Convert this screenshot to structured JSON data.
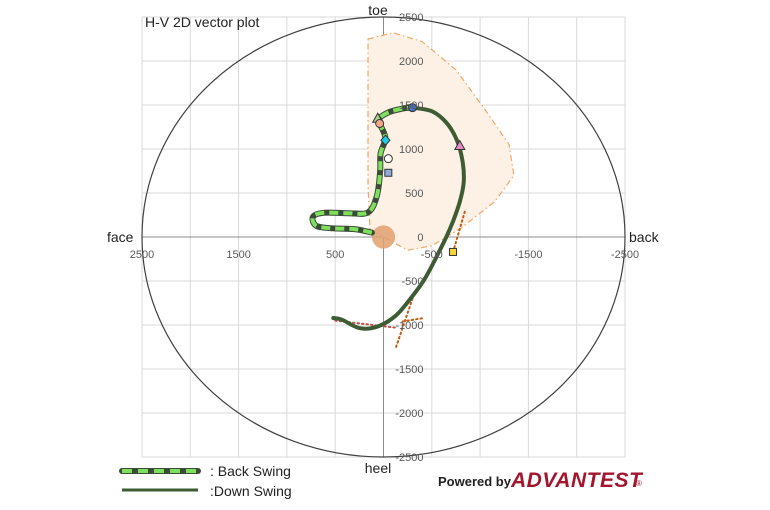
{
  "chart_data": {
    "type": "scatter",
    "title": "H-V 2D vector plot",
    "xlim": [
      2500,
      -2500
    ],
    "ylim": [
      -2500,
      2500
    ],
    "x_ticks": [
      2500,
      1500,
      500,
      -500,
      -1500,
      -2500
    ],
    "x_tick_labels": [
      "2500",
      "1500",
      "500",
      "-500",
      "-1500",
      "-2500"
    ],
    "y_ticks": [
      2500,
      2000,
      1500,
      1000,
      500,
      0,
      -500,
      -1000,
      -1500,
      -2000,
      -2500
    ],
    "y_tick_labels": [
      "2500",
      "2000",
      "1500",
      "1000",
      "500",
      "0",
      "-500",
      "-1000",
      "-1500",
      "-2000",
      "-2500"
    ],
    "grid": true,
    "direction_labels": {
      "top": "toe",
      "bottom": "heel",
      "left": "face",
      "right": "back"
    },
    "outer_ellipse": {
      "rx": 2500,
      "ry": 2500
    },
    "shaded_region": {
      "color": "#fdf1e6",
      "edge_color": "#f0a868",
      "points": [
        [
          160,
          2250
        ],
        [
          -100,
          2320
        ],
        [
          -400,
          2220
        ],
        [
          -750,
          1900
        ],
        [
          -1050,
          1450
        ],
        [
          -1300,
          1050
        ],
        [
          -1350,
          700
        ],
        [
          -1150,
          400
        ],
        [
          -800,
          100
        ],
        [
          -500,
          -100
        ],
        [
          -250,
          -150
        ],
        [
          0,
          0
        ],
        [
          140,
          80
        ],
        [
          160,
          600
        ],
        [
          160,
          1200
        ],
        [
          160,
          1800
        ],
        [
          160,
          2250
        ]
      ]
    },
    "origin_circle": {
      "x": 0,
      "y": 0,
      "r": 120,
      "color": "#e0a070"
    },
    "series": [
      {
        "name": "Back Swing",
        "color": "#7ee05c",
        "dash_color": "#3c4a3a",
        "points": [
          [
            120,
            50
          ],
          [
            300,
            90
          ],
          [
            550,
            100
          ],
          [
            700,
            130
          ],
          [
            730,
            230
          ],
          [
            620,
            275
          ],
          [
            360,
            270
          ],
          [
            160,
            280
          ],
          [
            70,
            460
          ],
          [
            35,
            740
          ],
          [
            30,
            950
          ],
          [
            -20,
            1120
          ],
          [
            30,
            1270
          ],
          [
            40,
            1350
          ],
          [
            -60,
            1420
          ],
          [
            -200,
            1460
          ],
          [
            -300,
            1470
          ]
        ]
      },
      {
        "name": "Down Swing",
        "color": "#3d5c34",
        "points": [
          [
            -300,
            1470
          ],
          [
            -500,
            1430
          ],
          [
            -650,
            1300
          ],
          [
            -760,
            1100
          ],
          [
            -820,
            850
          ],
          [
            -830,
            620
          ],
          [
            -790,
            400
          ],
          [
            -720,
            180
          ],
          [
            -650,
            0
          ],
          [
            -560,
            -200
          ],
          [
            -430,
            -470
          ],
          [
            -280,
            -700
          ],
          [
            -120,
            -900
          ],
          [
            70,
            -1020
          ],
          [
            250,
            -1035
          ],
          [
            430,
            -940
          ],
          [
            520,
            -920
          ]
        ]
      }
    ],
    "markers": [
      {
        "shape": "circle",
        "x": -300,
        "y": 1470,
        "color": "#4472c4"
      },
      {
        "shape": "triangle",
        "x": 60,
        "y": 1350,
        "color": "#a9d18e"
      },
      {
        "shape": "circle",
        "x": 40,
        "y": 1290,
        "color": "#f4a58a"
      },
      {
        "shape": "triangle",
        "x": -790,
        "y": 1040,
        "color": "#e38bc0"
      },
      {
        "shape": "diamond",
        "x": -20,
        "y": 1100,
        "color": "#1ecbe1"
      },
      {
        "shape": "circle",
        "x": -50,
        "y": 890,
        "color": "#ffffff"
      },
      {
        "shape": "square",
        "x": -50,
        "y": 730,
        "color": "#8faadc"
      },
      {
        "shape": "square",
        "x": -720,
        "y": -170,
        "color": "#ffd43b"
      }
    ],
    "dotted_lines": [
      {
        "color": "#c55a11",
        "points": [
          [
            -720,
            -170
          ],
          [
            -850,
            320
          ]
        ]
      },
      {
        "color": "#c55a11",
        "points": [
          [
            -300,
            -700
          ],
          [
            -130,
            -1250
          ]
        ]
      },
      {
        "color": "#c55a11",
        "points": [
          [
            -200,
            -960
          ],
          [
            -420,
            -920
          ]
        ]
      },
      {
        "color": "#c0504d",
        "points": [
          [
            500,
            -950
          ],
          [
            -120,
            -1030
          ]
        ]
      }
    ]
  },
  "legend": [
    {
      "label": ": Back Swing"
    },
    {
      "label": ":Down Swing"
    }
  ],
  "branding": {
    "powered_by": "Powered by",
    "brand": "ADVANTEST",
    "mark": "®"
  }
}
